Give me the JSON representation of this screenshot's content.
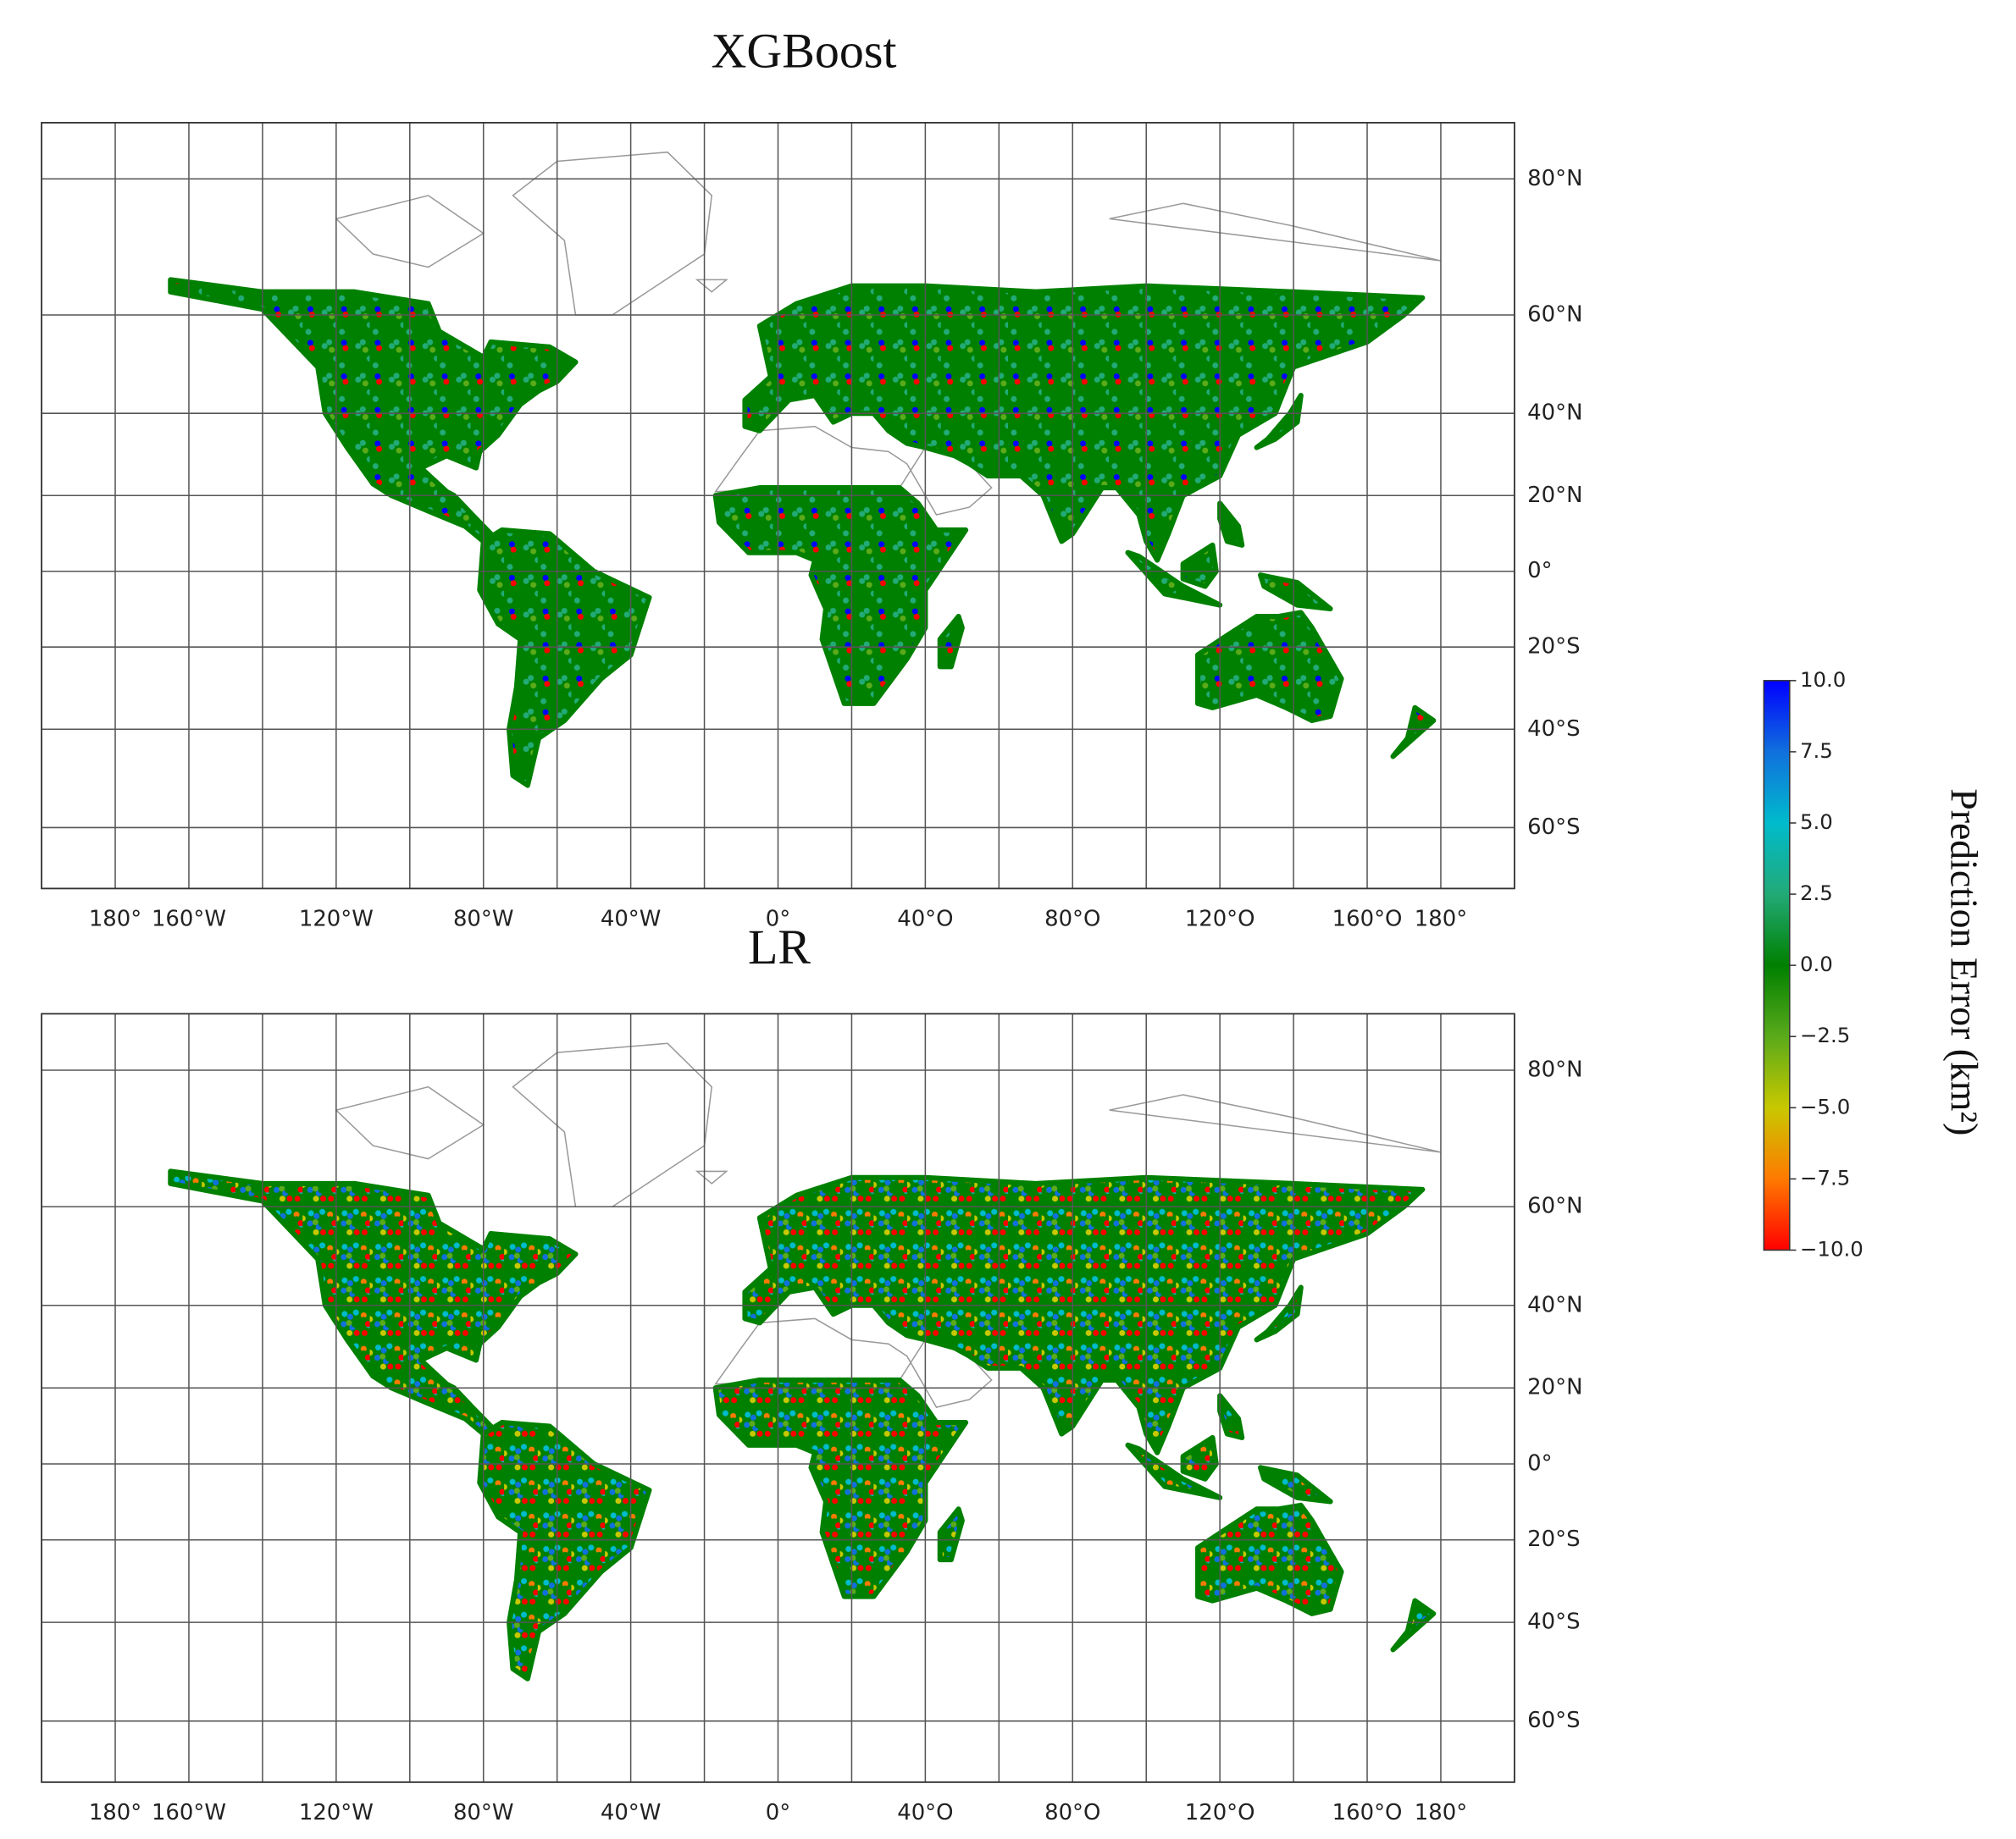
{
  "chart_data": [
    {
      "type": "map",
      "title": "XGBoost",
      "xlim": [
        -200,
        200
      ],
      "ylim": [
        -70,
        86
      ],
      "xticks": [
        {
          "value": -180,
          "label": "180°"
        },
        {
          "value": -160,
          "label": "160°W"
        },
        {
          "value": -120,
          "label": "120°W"
        },
        {
          "value": -80,
          "label": "80°W"
        },
        {
          "value": -40,
          "label": "40°W"
        },
        {
          "value": 0,
          "label": "0°"
        },
        {
          "value": 40,
          "label": "40°O"
        },
        {
          "value": 80,
          "label": "80°O"
        },
        {
          "value": 120,
          "label": "120°O"
        },
        {
          "value": 160,
          "label": "160°O"
        },
        {
          "value": 180,
          "label": "180°"
        }
      ],
      "xminorticks": [
        -140,
        -100,
        -60,
        -20,
        20,
        60,
        100,
        140
      ],
      "yticks": [
        {
          "value": 80,
          "label": "80°N"
        },
        {
          "value": 60,
          "label": "60°N"
        },
        {
          "value": 40,
          "label": "40°N"
        },
        {
          "value": 20,
          "label": "20°N"
        },
        {
          "value": 0,
          "label": "0°"
        },
        {
          "value": -20,
          "label": "20°S"
        },
        {
          "value": -40,
          "label": "40°S"
        },
        {
          "value": -60,
          "label": "60°S"
        }
      ],
      "grid": true
    },
    {
      "type": "map",
      "title": "LR",
      "xlim": [
        -200,
        200
      ],
      "ylim": [
        -70,
        86
      ],
      "xticks": [
        {
          "value": -180,
          "label": "180°"
        },
        {
          "value": -160,
          "label": "160°W"
        },
        {
          "value": -120,
          "label": "120°W"
        },
        {
          "value": -80,
          "label": "80°W"
        },
        {
          "value": -40,
          "label": "40°W"
        },
        {
          "value": 0,
          "label": "0°"
        },
        {
          "value": 40,
          "label": "40°O"
        },
        {
          "value": 80,
          "label": "80°O"
        },
        {
          "value": 120,
          "label": "120°O"
        },
        {
          "value": 160,
          "label": "160°O"
        },
        {
          "value": 180,
          "label": "180°"
        }
      ],
      "xminorticks": [
        -140,
        -100,
        -60,
        -20,
        20,
        60,
        100,
        140
      ],
      "yticks": [
        {
          "value": 80,
          "label": "80°N"
        },
        {
          "value": 60,
          "label": "60°N"
        },
        {
          "value": 40,
          "label": "40°N"
        },
        {
          "value": 20,
          "label": "20°N"
        },
        {
          "value": 0,
          "label": "0°"
        },
        {
          "value": -20,
          "label": "20°S"
        },
        {
          "value": -40,
          "label": "40°S"
        },
        {
          "value": -60,
          "label": "60°S"
        }
      ],
      "grid": true
    }
  ],
  "colorbar": {
    "label": "Prediction Error (km²)",
    "lim": [
      -10,
      10
    ],
    "ticks": [
      {
        "value": 10,
        "label": "10.0"
      },
      {
        "value": 7.5,
        "label": "7.5"
      },
      {
        "value": 5,
        "label": "5.0"
      },
      {
        "value": 2.5,
        "label": "2.5"
      },
      {
        "value": 0,
        "label": "0.0"
      },
      {
        "value": -2.5,
        "label": "−2.5"
      },
      {
        "value": -5,
        "label": "−5.0"
      },
      {
        "value": -7.5,
        "label": "−7.5"
      },
      {
        "value": -10,
        "label": "−10.0"
      }
    ],
    "colormap": [
      "#ff0000",
      "#ff7a00",
      "#c8c800",
      "#5aaa1a",
      "#008000",
      "#22aa77",
      "#00bbcc",
      "#1070dd",
      "#0000ff"
    ]
  }
}
